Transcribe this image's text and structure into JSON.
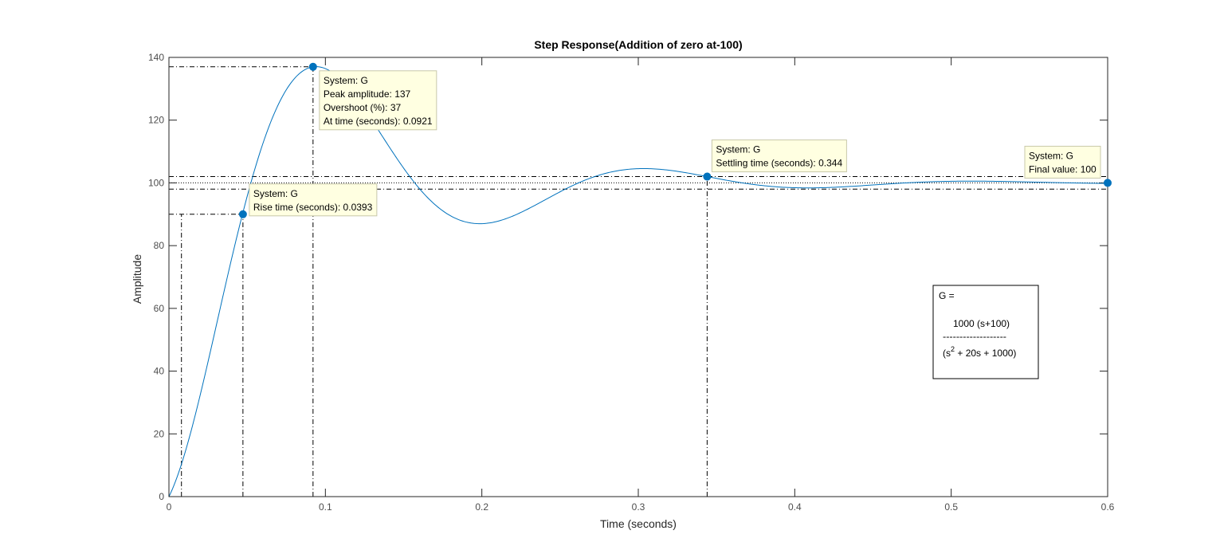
{
  "chart_data": {
    "type": "line",
    "title": "Step Response(Addition of zero at-100)",
    "xlabel": "Time (seconds)",
    "ylabel": "Amplitude",
    "xlim": [
      0,
      0.6
    ],
    "ylim": [
      0,
      140
    ],
    "xticks": [
      0,
      0.1,
      0.2,
      0.3,
      0.4,
      0.5,
      0.6
    ],
    "xtick_labels": [
      "0",
      "0.1",
      "0.2",
      "0.3",
      "0.4",
      "0.5",
      "0.6"
    ],
    "yticks": [
      0,
      20,
      40,
      60,
      80,
      100,
      120,
      140
    ],
    "ytick_labels": [
      "0",
      "20",
      "40",
      "60",
      "80",
      "100",
      "120",
      "140"
    ],
    "grid": false,
    "series": [
      {
        "color": "#0072bd",
        "system": {
          "numerator_gain": 1000,
          "zero": -100,
          "den": [
            1,
            20,
            1000
          ]
        }
      }
    ],
    "reference_lines": {
      "rise_low": 10,
      "rise_high": 90,
      "settling_band": [
        98,
        102
      ],
      "final_value": 100,
      "peak": 137,
      "rise_start_time": 0.008,
      "rise_end_time": 0.0473,
      "peak_time": 0.0921,
      "settling_time": 0.344
    },
    "datatips": [
      {
        "id": "peak",
        "x": 0.0921,
        "y": 137,
        "lines": [
          "System: G",
          "Peak amplitude: 137",
          "Overshoot (%): 37",
          "At time (seconds): 0.0921"
        ]
      },
      {
        "id": "rise",
        "x": 0.0473,
        "y": 90,
        "lines": [
          "System: G",
          "Rise time (seconds): 0.0393"
        ]
      },
      {
        "id": "settling",
        "x": 0.344,
        "y": 102,
        "lines": [
          "System: G",
          "Settling time (seconds): 0.344"
        ]
      },
      {
        "id": "final",
        "x": 0.6,
        "y": 100,
        "lines": [
          "System: G",
          "Final value: 100"
        ]
      }
    ],
    "annotation": {
      "label": "G =",
      "numerator": "1000 (s+100)",
      "divider": "-------------------",
      "denominator_prefix": "(s",
      "denominator_exp": "2",
      "denominator_suffix": " + 20s + 1000)"
    },
    "colors": {
      "line": "#0072bd",
      "datatip_bg": "#ffffe1",
      "datatip_border": "#c8c8aa",
      "axes": "#262626",
      "tick_text": "#4d4d4d"
    }
  }
}
